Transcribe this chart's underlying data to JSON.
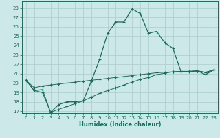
{
  "bg_color": "#cce8e8",
  "grid_color": "#aacccc",
  "line_color": "#1a6b5a",
  "x_ticks": [
    0,
    1,
    2,
    3,
    4,
    5,
    6,
    7,
    8,
    9,
    10,
    11,
    12,
    13,
    14,
    15,
    16,
    17,
    18,
    19,
    20,
    21,
    22,
    23
  ],
  "xlabel": "Humidex (Indice chaleur)",
  "ylim": [
    16.8,
    28.7
  ],
  "xlim": [
    -0.5,
    23.5
  ],
  "yticks": [
    17,
    18,
    19,
    20,
    21,
    22,
    23,
    24,
    25,
    26,
    27,
    28
  ],
  "curve1_x": [
    0,
    1,
    2,
    3,
    4,
    5,
    6,
    7,
    8,
    9,
    10,
    11,
    12,
    13,
    14,
    15,
    16,
    17,
    18,
    19,
    20,
    21,
    22,
    23
  ],
  "curve1_y": [
    20.3,
    19.2,
    19.3,
    16.9,
    17.7,
    18.0,
    18.0,
    18.1,
    20.2,
    22.5,
    25.3,
    26.5,
    26.5,
    27.9,
    27.4,
    25.3,
    25.5,
    24.3,
    23.7,
    21.2,
    21.2,
    21.3,
    20.9,
    21.4
  ],
  "curve2_x": [
    0,
    1,
    2,
    3,
    4,
    5,
    6,
    7,
    8,
    9,
    10,
    11,
    12,
    13,
    14,
    15,
    16,
    17,
    18,
    19,
    20,
    21,
    22,
    23
  ],
  "curve2_y": [
    20.3,
    19.5,
    19.7,
    19.8,
    19.9,
    20.0,
    20.1,
    20.2,
    20.3,
    20.4,
    20.5,
    20.6,
    20.7,
    20.8,
    20.9,
    21.0,
    21.1,
    21.15,
    21.2,
    21.25,
    21.25,
    21.3,
    21.15,
    21.4
  ],
  "curve3_x": [
    0,
    1,
    2,
    3,
    4,
    5,
    6,
    7,
    8,
    9,
    10,
    11,
    12,
    13,
    14,
    15,
    16,
    17,
    18,
    19,
    20,
    21,
    22,
    23
  ],
  "curve3_y": [
    20.3,
    19.2,
    19.0,
    16.9,
    17.2,
    17.5,
    17.8,
    18.1,
    18.5,
    18.9,
    19.2,
    19.5,
    19.8,
    20.1,
    20.4,
    20.6,
    20.9,
    21.05,
    21.2,
    21.25,
    21.25,
    21.3,
    21.15,
    21.4
  ]
}
